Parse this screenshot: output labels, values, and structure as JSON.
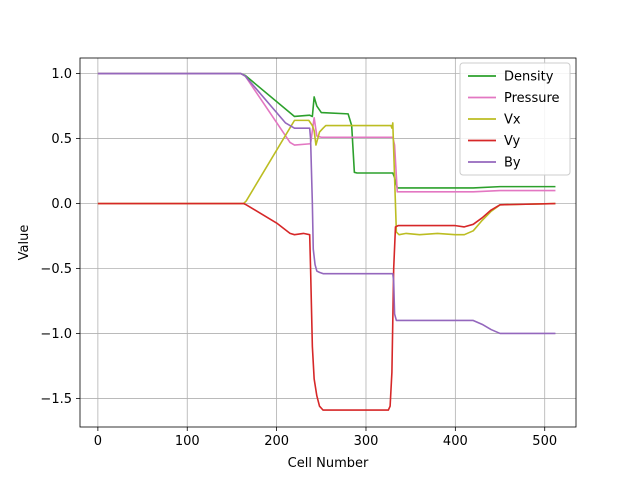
{
  "chart_data": {
    "type": "line",
    "title": "",
    "xlabel": "Cell Number",
    "ylabel": "Value",
    "xlim": [
      -20,
      535
    ],
    "ylim": [
      -1.72,
      1.12
    ],
    "xticks": [
      0,
      100,
      200,
      300,
      400,
      500
    ],
    "yticks": [
      -1.5,
      -1.0,
      -0.5,
      0.0,
      0.5,
      1.0
    ],
    "ytick_labels": [
      "−1.5",
      "−1.0",
      "−0.5",
      "0.0",
      "0.5",
      "1.0"
    ],
    "grid": true,
    "legend_position": "top-right",
    "series": [
      {
        "name": "Density",
        "color": "#2ca02c",
        "x": [
          0,
          160,
          165,
          220,
          237,
          240,
          242,
          245,
          250,
          280,
          284,
          287,
          290,
          330,
          332,
          335,
          420,
          450,
          512
        ],
        "y": [
          1.0,
          1.0,
          0.985,
          0.67,
          0.68,
          0.67,
          0.82,
          0.75,
          0.7,
          0.69,
          0.6,
          0.24,
          0.235,
          0.235,
          0.2,
          0.12,
          0.12,
          0.13,
          0.13
        ]
      },
      {
        "name": "Pressure",
        "color": "#e377c2",
        "x": [
          0,
          160,
          165,
          215,
          220,
          238,
          242,
          245,
          250,
          330,
          332,
          335,
          420,
          450,
          512
        ],
        "y": [
          1.0,
          1.0,
          0.98,
          0.47,
          0.45,
          0.46,
          0.66,
          0.52,
          0.51,
          0.51,
          0.45,
          0.09,
          0.09,
          0.1,
          0.1
        ],
        "smooth_segment": [
          165,
          220
        ]
      },
      {
        "name": "Vx",
        "color": "#bcbd22",
        "x": [
          0,
          163,
          166,
          220,
          236,
          240,
          242,
          244,
          248,
          252,
          255,
          258,
          328,
          329,
          330,
          332,
          334,
          337,
          345,
          360,
          380,
          400,
          410,
          420,
          430,
          440,
          450,
          512
        ],
        "y": [
          0.0,
          0.0,
          0.02,
          0.64,
          0.64,
          0.6,
          0.56,
          0.45,
          0.55,
          0.58,
          0.6,
          0.6,
          0.6,
          0.58,
          0.62,
          0.2,
          -0.22,
          -0.24,
          -0.23,
          -0.24,
          -0.23,
          -0.24,
          -0.24,
          -0.21,
          -0.13,
          -0.06,
          -0.01,
          0.0
        ]
      },
      {
        "name": "Vy",
        "color": "#d62728",
        "x": [
          0,
          163,
          166,
          200,
          215,
          220,
          230,
          237,
          238,
          240,
          242,
          245,
          248,
          252,
          256,
          300,
          325,
          327,
          329,
          331,
          333,
          336,
          345,
          360,
          380,
          400,
          410,
          420,
          430,
          440,
          450,
          512
        ],
        "y": [
          0.0,
          0.0,
          -0.01,
          -0.15,
          -0.23,
          -0.24,
          -0.23,
          -0.24,
          -0.5,
          -1.1,
          -1.35,
          -1.48,
          -1.56,
          -1.59,
          -1.59,
          -1.59,
          -1.59,
          -1.56,
          -1.3,
          -0.5,
          -0.18,
          -0.17,
          -0.17,
          -0.17,
          -0.17,
          -0.17,
          -0.18,
          -0.16,
          -0.11,
          -0.05,
          -0.01,
          0.0
        ]
      },
      {
        "name": "By",
        "color": "#9467bd",
        "x": [
          0,
          160,
          165,
          210,
          220,
          237,
          238,
          240,
          241,
          243,
          245,
          248,
          252,
          256,
          330,
          331,
          332,
          334,
          336,
          350,
          380,
          400,
          410,
          420,
          430,
          440,
          450,
          512
        ],
        "y": [
          1.0,
          1.0,
          0.98,
          0.62,
          0.58,
          0.58,
          0.5,
          0.0,
          -0.35,
          -0.47,
          -0.52,
          -0.53,
          -0.54,
          -0.54,
          -0.54,
          -0.6,
          -0.85,
          -0.9,
          -0.9,
          -0.9,
          -0.9,
          -0.9,
          -0.9,
          -0.9,
          -0.93,
          -0.97,
          -1.0,
          -1.0
        ]
      }
    ]
  }
}
